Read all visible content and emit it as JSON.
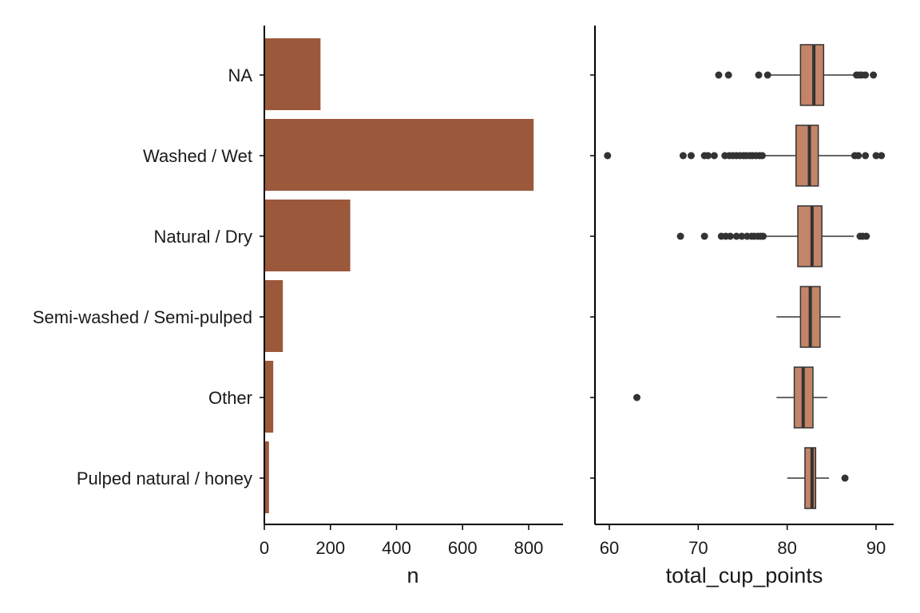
{
  "chart_data": [
    {
      "type": "bar",
      "orientation": "horizontal",
      "categories": [
        "NA",
        "Washed / Wet",
        "Natural / Dry",
        "Semi-washed / Semi-pulped",
        "Other",
        "Pulped natural / honey"
      ],
      "values": [
        170,
        815,
        260,
        56,
        27,
        14
      ],
      "xlabel": "n",
      "ylabel": "",
      "xlim": [
        0,
        900
      ],
      "xticks": [
        0,
        200,
        400,
        600,
        800
      ],
      "grid": false,
      "color": "#9c583b"
    },
    {
      "type": "boxplot",
      "orientation": "horizontal",
      "categories": [
        "NA",
        "Washed / Wet",
        "Natural / Dry",
        "Semi-washed / Semi-pulped",
        "Other",
        "Pulped natural / honey"
      ],
      "boxes": [
        {
          "category": "NA",
          "whisker_low": 78.0,
          "q1": 81.5,
          "median": 83.0,
          "q3": 84.1,
          "whisker_high": 87.5,
          "outliers": [
            72.3,
            73.4,
            76.8,
            77.8,
            87.8,
            88.1,
            88.4,
            88.8,
            89.7
          ]
        },
        {
          "category": "Washed / Wet",
          "whisker_low": 77.4,
          "q1": 81.0,
          "median": 82.5,
          "q3": 83.5,
          "whisker_high": 87.3,
          "outliers": [
            59.8,
            68.3,
            69.2,
            70.7,
            71.1,
            71.8,
            73.0,
            73.5,
            73.9,
            74.3,
            74.7,
            75.1,
            75.4,
            75.8,
            76.1,
            76.5,
            76.9,
            77.2,
            87.6,
            88.0,
            88.8,
            90.0,
            90.6
          ]
        },
        {
          "category": "Natural / Dry",
          "whisker_low": 77.6,
          "q1": 81.2,
          "median": 82.8,
          "q3": 83.9,
          "whisker_high": 87.5,
          "outliers": [
            68.0,
            70.7,
            72.6,
            73.1,
            73.6,
            74.3,
            74.9,
            75.5,
            76.0,
            76.3,
            76.7,
            77.0,
            77.3,
            88.2,
            88.5,
            88.9
          ]
        },
        {
          "category": "Semi-washed / Semi-pulped",
          "whisker_low": 78.8,
          "q1": 81.5,
          "median": 82.6,
          "q3": 83.7,
          "whisker_high": 86.0,
          "outliers": []
        },
        {
          "category": "Other",
          "whisker_low": 78.8,
          "q1": 80.8,
          "median": 81.8,
          "q3": 82.9,
          "whisker_high": 84.5,
          "outliers": [
            63.1
          ]
        },
        {
          "category": "Pulped natural / honey",
          "whisker_low": 80.0,
          "q1": 82.0,
          "median": 82.8,
          "q3": 83.2,
          "whisker_high": 84.7,
          "outliers": [
            86.5
          ]
        }
      ],
      "xlabel": "total_cup_points",
      "ylabel": "",
      "xlim": [
        58.5,
        92.3
      ],
      "xticks": [
        60,
        70,
        80,
        90
      ],
      "grid": false,
      "box_color": "#c38467",
      "line_color": "#333333"
    }
  ]
}
